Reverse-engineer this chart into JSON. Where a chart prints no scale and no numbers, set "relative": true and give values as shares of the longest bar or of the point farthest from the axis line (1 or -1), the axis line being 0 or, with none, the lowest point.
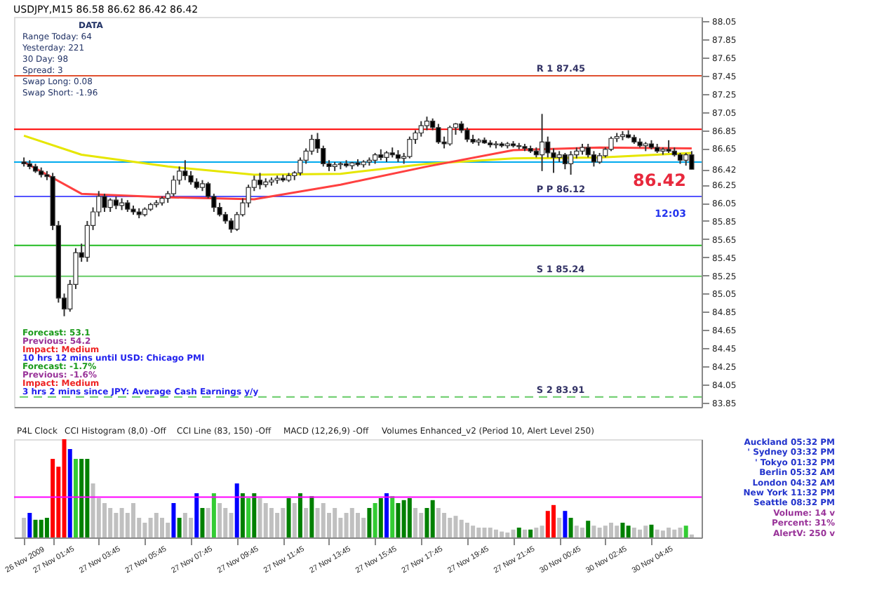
{
  "chart_data": [
    {
      "type": "candlestick",
      "title": "USDJPY,M15  86.58 86.62 86.42 86.42",
      "categories": [
        null,
        null,
        null,
        null,
        null,
        null,
        null,
        null,
        null,
        null,
        null,
        null,
        null,
        null,
        null,
        null,
        null,
        null,
        null,
        null,
        null,
        null,
        null,
        null,
        null,
        null,
        null,
        null,
        null,
        null,
        null,
        null,
        null,
        null,
        null,
        null,
        null,
        null,
        null,
        null,
        null,
        null,
        null,
        null,
        null,
        null,
        null,
        null,
        null,
        null,
        null,
        null,
        null,
        null,
        null,
        null,
        null,
        null,
        null,
        null,
        null,
        null,
        null,
        null,
        null,
        null,
        null,
        null,
        null,
        null,
        null,
        null,
        null,
        null,
        null,
        null,
        null,
        null,
        null,
        null,
        null,
        null,
        null,
        null,
        null,
        null,
        null,
        null,
        null,
        null,
        null,
        null,
        null,
        null,
        null,
        null,
        null,
        null,
        null,
        null,
        null,
        null,
        null,
        null,
        null,
        null,
        null,
        null,
        null,
        null,
        null,
        null,
        null,
        null,
        null,
        null,
        null
      ],
      "ohlc": [
        [
          86.5,
          86.55,
          86.45,
          86.48
        ],
        [
          86.48,
          86.52,
          86.42,
          86.45
        ],
        [
          86.45,
          86.48,
          86.38,
          86.4
        ],
        [
          86.4,
          86.44,
          86.33,
          86.36
        ],
        [
          86.36,
          86.4,
          86.3,
          86.34
        ],
        [
          86.34,
          86.38,
          85.75,
          85.8
        ],
        [
          85.8,
          85.85,
          84.95,
          85.0
        ],
        [
          85.0,
          85.05,
          84.8,
          84.88
        ],
        [
          84.88,
          85.2,
          84.85,
          85.15
        ],
        [
          85.15,
          85.55,
          85.1,
          85.5
        ],
        [
          85.5,
          85.6,
          85.4,
          85.45
        ],
        [
          85.45,
          85.85,
          85.4,
          85.8
        ],
        [
          85.8,
          86.0,
          85.75,
          85.95
        ],
        [
          85.95,
          86.18,
          85.9,
          86.12
        ],
        [
          86.12,
          86.15,
          85.95,
          86.0
        ],
        [
          86.0,
          86.1,
          85.95,
          86.08
        ],
        [
          86.08,
          86.12,
          85.98,
          86.02
        ],
        [
          86.02,
          86.1,
          85.97,
          86.05
        ],
        [
          86.05,
          86.08,
          85.95,
          85.98
        ],
        [
          85.98,
          86.02,
          85.92,
          85.95
        ],
        [
          85.95,
          85.99,
          85.88,
          85.92
        ],
        [
          85.92,
          86.0,
          85.9,
          85.98
        ],
        [
          85.98,
          86.05,
          85.96,
          86.03
        ],
        [
          86.03,
          86.08,
          86.0,
          86.05
        ],
        [
          86.05,
          86.12,
          86.02,
          86.1
        ],
        [
          86.1,
          86.18,
          86.05,
          86.15
        ],
        [
          86.15,
          86.35,
          86.12,
          86.3
        ],
        [
          86.3,
          86.45,
          86.25,
          86.4
        ],
        [
          86.4,
          86.52,
          86.3,
          86.35
        ],
        [
          86.35,
          86.4,
          86.25,
          86.28
        ],
        [
          86.28,
          86.32,
          86.2,
          86.22
        ],
        [
          86.22,
          86.3,
          86.18,
          86.26
        ],
        [
          86.26,
          86.28,
          86.1,
          86.12
        ],
        [
          86.12,
          86.15,
          85.95,
          86.0
        ],
        [
          86.0,
          86.05,
          85.9,
          85.92
        ],
        [
          85.92,
          85.95,
          85.82,
          85.85
        ],
        [
          85.85,
          85.88,
          85.72,
          85.76
        ],
        [
          85.76,
          85.95,
          85.74,
          85.92
        ],
        [
          85.92,
          86.1,
          85.9,
          86.05
        ],
        [
          86.05,
          86.25,
          86.0,
          86.22
        ],
        [
          86.22,
          86.35,
          86.18,
          86.3
        ],
        [
          86.3,
          86.38,
          86.2,
          86.25
        ],
        [
          86.25,
          86.32,
          86.22,
          86.28
        ],
        [
          86.28,
          86.33,
          86.24,
          86.3
        ],
        [
          86.3,
          86.35,
          86.26,
          86.32
        ],
        [
          86.32,
          86.36,
          86.28,
          86.3
        ],
        [
          86.3,
          86.38,
          86.28,
          86.35
        ],
        [
          86.35,
          86.4,
          86.3,
          86.38
        ],
        [
          86.38,
          86.55,
          86.35,
          86.52
        ],
        [
          86.52,
          86.65,
          86.48,
          86.62
        ],
        [
          86.62,
          86.8,
          86.58,
          86.75
        ],
        [
          86.75,
          86.82,
          86.6,
          86.65
        ],
        [
          86.65,
          86.68,
          86.45,
          86.48
        ],
        [
          86.48,
          86.52,
          86.4,
          86.45
        ],
        [
          86.45,
          86.5,
          86.4,
          86.47
        ],
        [
          86.47,
          86.5,
          86.42,
          86.48
        ],
        [
          86.48,
          86.52,
          86.44,
          86.46
        ],
        [
          86.46,
          86.5,
          86.42,
          86.49
        ],
        [
          86.49,
          86.53,
          86.45,
          86.47
        ],
        [
          86.47,
          86.52,
          86.44,
          86.5
        ],
        [
          86.5,
          86.55,
          86.46,
          86.52
        ],
        [
          86.52,
          86.6,
          86.48,
          86.58
        ],
        [
          86.58,
          86.64,
          86.52,
          86.55
        ],
        [
          86.55,
          86.62,
          86.5,
          86.6
        ],
        [
          86.6,
          86.66,
          86.55,
          86.58
        ],
        [
          86.58,
          86.63,
          86.5,
          86.54
        ],
        [
          86.54,
          86.6,
          86.48,
          86.56
        ],
        [
          86.56,
          86.78,
          86.54,
          86.75
        ],
        [
          86.75,
          86.85,
          86.7,
          86.82
        ],
        [
          86.82,
          86.95,
          86.78,
          86.9
        ],
        [
          86.9,
          87.0,
          86.85,
          86.95
        ],
        [
          86.95,
          86.98,
          86.85,
          86.88
        ],
        [
          86.88,
          86.92,
          86.7,
          86.72
        ],
        [
          86.72,
          86.78,
          86.65,
          86.7
        ],
        [
          86.7,
          86.9,
          86.68,
          86.88
        ],
        [
          86.88,
          86.93,
          86.8,
          86.92
        ],
        [
          86.92,
          86.95,
          86.82,
          86.85
        ],
        [
          86.85,
          86.88,
          86.72,
          86.75
        ],
        [
          86.75,
          86.8,
          86.7,
          86.72
        ],
        [
          86.72,
          86.76,
          86.68,
          86.74
        ],
        [
          86.74,
          86.77,
          86.7,
          86.71
        ],
        [
          86.71,
          86.74,
          86.66,
          86.69
        ],
        [
          86.69,
          86.73,
          86.65,
          86.7
        ],
        [
          86.7,
          86.72,
          86.66,
          86.68
        ],
        [
          86.68,
          86.72,
          86.65,
          86.7
        ],
        [
          86.7,
          86.73,
          86.66,
          86.68
        ],
        [
          86.68,
          86.71,
          86.64,
          86.67
        ],
        [
          86.67,
          86.7,
          86.62,
          86.65
        ],
        [
          86.65,
          86.68,
          86.6,
          86.62
        ],
        [
          86.62,
          86.66,
          86.55,
          86.58
        ],
        [
          86.58,
          87.03,
          86.4,
          86.72
        ],
        [
          86.72,
          86.78,
          86.55,
          86.6
        ],
        [
          86.6,
          86.65,
          86.38,
          86.55
        ],
        [
          86.55,
          86.62,
          86.5,
          86.58
        ],
        [
          86.58,
          86.6,
          86.42,
          86.48
        ],
        [
          86.48,
          86.62,
          86.36,
          86.58
        ],
        [
          86.58,
          86.66,
          86.54,
          86.62
        ],
        [
          86.62,
          86.7,
          86.58,
          86.66
        ],
        [
          86.66,
          86.7,
          86.55,
          86.58
        ],
        [
          86.58,
          86.62,
          86.45,
          86.5
        ],
        [
          86.5,
          86.6,
          86.48,
          86.57
        ],
        [
          86.57,
          86.66,
          86.55,
          86.64
        ],
        [
          86.64,
          86.78,
          86.62,
          86.76
        ],
        [
          86.76,
          86.82,
          86.72,
          86.78
        ],
        [
          86.78,
          86.84,
          86.74,
          86.8
        ],
        [
          86.8,
          86.85,
          86.76,
          86.77
        ],
        [
          86.77,
          86.8,
          86.7,
          86.72
        ],
        [
          86.72,
          86.76,
          86.66,
          86.68
        ],
        [
          86.68,
          86.72,
          86.62,
          86.7
        ],
        [
          86.7,
          86.74,
          86.64,
          86.66
        ],
        [
          86.66,
          86.7,
          86.6,
          86.62
        ],
        [
          86.62,
          86.66,
          86.58,
          86.64
        ],
        [
          86.64,
          86.74,
          86.6,
          86.62
        ],
        [
          86.62,
          86.66,
          86.56,
          86.58
        ],
        [
          86.58,
          86.6,
          86.48,
          86.52
        ],
        [
          86.52,
          86.6,
          86.46,
          86.58
        ],
        [
          86.58,
          86.62,
          86.42,
          86.42
        ]
      ],
      "series": [
        {
          "type": "line",
          "color": "#e6e600",
          "values": [
            86.79,
            null,
            null,
            null,
            null,
            null,
            null,
            null,
            null,
            null,
            86.58,
            null,
            null,
            null,
            null,
            null,
            null,
            null,
            null,
            null,
            null,
            null,
            null,
            null,
            null,
            86.45,
            null,
            null,
            null,
            null,
            null,
            null,
            null,
            null,
            null,
            null,
            null,
            null,
            null,
            null,
            86.36,
            null,
            null,
            null,
            null,
            null,
            null,
            null,
            null,
            null,
            null,
            null,
            null,
            null,
            null,
            86.37,
            null,
            null,
            null,
            null,
            null,
            null,
            null,
            null,
            null,
            null,
            null,
            null,
            null,
            null,
            86.48,
            null,
            null,
            null,
            null,
            null,
            null,
            null,
            null,
            null,
            null,
            null,
            null,
            null,
            null,
            86.54,
            null,
            null,
            null,
            null,
            null,
            null,
            null,
            null,
            null,
            null,
            null,
            null,
            null,
            null,
            86.55,
            null,
            null,
            null,
            null,
            null,
            null,
            null,
            null,
            null,
            null,
            null,
            null,
            null,
            null,
            null,
            86.6
          ]
        },
        {
          "type": "line",
          "color": "#ff4040",
          "values": [
            86.5,
            null,
            null,
            null,
            null,
            null,
            null,
            null,
            null,
            null,
            86.15,
            null,
            null,
            null,
            null,
            null,
            null,
            null,
            null,
            null,
            null,
            null,
            null,
            null,
            null,
            86.11,
            null,
            null,
            null,
            null,
            null,
            null,
            null,
            null,
            null,
            null,
            null,
            null,
            null,
            null,
            86.09,
            null,
            null,
            null,
            null,
            null,
            null,
            null,
            null,
            null,
            null,
            null,
            null,
            null,
            null,
            86.25,
            null,
            null,
            null,
            null,
            null,
            null,
            null,
            null,
            null,
            null,
            null,
            null,
            null,
            null,
            86.45,
            null,
            null,
            null,
            null,
            null,
            null,
            null,
            null,
            null,
            null,
            null,
            null,
            null,
            null,
            86.63,
            null,
            null,
            null,
            null,
            null,
            null,
            null,
            null,
            null,
            null,
            null,
            null,
            null,
            null,
            86.66,
            null,
            null,
            null,
            null,
            null,
            null,
            null,
            null,
            null,
            null,
            null,
            null,
            null,
            null,
            null,
            86.65
          ]
        }
      ],
      "ref_lines": [
        {
          "axis": "y",
          "value": 87.45,
          "label": "R 1  87.45",
          "color": "#e05030"
        },
        {
          "axis": "y",
          "value": 86.86,
          "color": "#ff0000"
        },
        {
          "axis": "y",
          "value": 86.5,
          "color": "#00aaee"
        },
        {
          "axis": "y",
          "value": 86.12,
          "label": "P P  86.12",
          "color": "#5555ff"
        },
        {
          "axis": "y",
          "value": 85.58,
          "color": "#22bb22"
        },
        {
          "axis": "y",
          "value": 85.24,
          "label": "S 1  85.24",
          "color": "#66cc66"
        },
        {
          "axis": "y",
          "value": 83.91,
          "label": "S 2  83.91",
          "color": "#66cc66",
          "line_style": "dashed"
        }
      ],
      "annotations": [
        "DATA",
        "Range Today:  64",
        "Yesterday:  221",
        "30 Day:  98",
        "Spread:  3",
        "Swap Long:  0.08",
        "Swap Short:  -1.96",
        "Forecast: 53.1",
        "Previous: 54.2",
        "Impact: Medium",
        "10 hrs 12 mins until USD: Chicago PMI",
        "Forecast: -1.7%",
        "Previous: -1.6%",
        "Impact: Medium",
        "3 hrs 2 mins since JPY: Average Cash Earnings y/y",
        "12:03",
        "86.42"
      ],
      "ylim": [
        83.8,
        88.1
      ],
      "yticks": [
        88.05,
        87.85,
        87.65,
        87.45,
        87.25,
        87.05,
        86.85,
        86.65,
        86.42,
        86.25,
        86.05,
        85.85,
        85.65,
        85.45,
        85.25,
        85.05,
        84.85,
        84.65,
        84.45,
        84.25,
        84.05,
        83.85
      ],
      "tick_labels": "y"
    },
    {
      "type": "bar",
      "relative": true,
      "categories": [
        "26 Nov 2009",
        null,
        null,
        null,
        null,
        "27 Nov 01:45",
        null,
        null,
        null,
        null,
        null,
        null,
        null,
        "27 Nov 03:45",
        null,
        null,
        null,
        null,
        null,
        null,
        null,
        "27 Nov 05:45",
        null,
        null,
        null,
        null,
        null,
        null,
        null,
        "27 Nov 07:45",
        null,
        null,
        null,
        null,
        null,
        null,
        null,
        "27 Nov 09:45",
        null,
        null,
        null,
        null,
        null,
        null,
        null,
        "27 Nov 11:45",
        null,
        null,
        null,
        null,
        null,
        null,
        null,
        "27 Nov 13:45",
        null,
        null,
        null,
        null,
        null,
        null,
        null,
        "27 Nov 15:45",
        null,
        null,
        null,
        null,
        null,
        null,
        null,
        "27 Nov 17:45",
        null,
        null,
        null,
        null,
        null,
        null,
        null,
        "27 Nov 19:45",
        null,
        null,
        null,
        null,
        null,
        null,
        null,
        "27 Nov 21:45",
        null,
        null,
        null,
        null,
        null,
        null,
        null,
        "30 Nov 00:45",
        null,
        null,
        null,
        null,
        null,
        null,
        null,
        "30 Nov 02:45",
        null,
        null,
        null,
        null,
        null,
        null,
        null,
        "30 Nov 04:45",
        null,
        null,
        null,
        null,
        null,
        null,
        null
      ],
      "values": [
        0.2,
        0.25,
        0.18,
        0.18,
        0.2,
        0.8,
        0.72,
        1,
        0.9,
        0.8,
        0.8,
        0.8,
        0.55,
        0.4,
        0.35,
        0.3,
        0.25,
        0.3,
        0.25,
        0.35,
        0.2,
        0.15,
        0.2,
        0.25,
        0.2,
        0.15,
        0.35,
        0.2,
        0.25,
        0.2,
        0.45,
        0.3,
        0.3,
        0.45,
        0.35,
        0.3,
        0.25,
        0.55,
        0.45,
        0.4,
        0.45,
        0.4,
        0.35,
        0.3,
        0.25,
        0.3,
        0.4,
        0.35,
        0.45,
        0.3,
        0.42,
        0.3,
        0.35,
        0.25,
        0.3,
        0.2,
        0.25,
        0.3,
        0.25,
        0.2,
        0.3,
        0.35,
        0.4,
        0.45,
        0.42,
        0.35,
        0.38,
        0.4,
        0.3,
        0.25,
        0.3,
        0.38,
        0.3,
        0.25,
        0.2,
        0.22,
        0.18,
        0.15,
        0.12,
        0.1,
        0.1,
        0.1,
        0.08,
        0.06,
        0.05,
        0.08,
        0.1,
        0.08,
        0.08,
        0.1,
        0.12,
        0.27,
        0.33,
        0.2,
        0.27,
        0.2,
        0.12,
        0.1,
        0.17,
        0.12,
        0.1,
        0.12,
        0.15,
        0.12,
        0.15,
        0.12,
        0.1,
        0.08,
        0.12,
        0.13,
        0.08,
        0.07,
        0.1,
        0.08,
        0.1,
        0.12,
        0.03
      ],
      "colors": [
        "#c0c0c0",
        "#0000ff",
        "#008000",
        "#008000",
        "#008000",
        "#ff0000",
        "#ff0000",
        "#ff0000",
        "#0000ff",
        "#33cc33",
        "#008000",
        "#008000",
        "#c0c0c0",
        "#c0c0c0",
        "#c0c0c0",
        "#c0c0c0",
        "#c0c0c0",
        "#c0c0c0",
        "#c0c0c0",
        "#c0c0c0",
        "#c0c0c0",
        "#c0c0c0",
        "#c0c0c0",
        "#c0c0c0",
        "#c0c0c0",
        "#c0c0c0",
        "#0000ff",
        "#008000",
        "#c0c0c0",
        "#c0c0c0",
        "#0000ff",
        "#008000",
        "#c0c0c0",
        "#33cc33",
        "#c0c0c0",
        "#c0c0c0",
        "#c0c0c0",
        "#0000ff",
        "#008000",
        "#33cc33",
        "#008000",
        "#c0c0c0",
        "#c0c0c0",
        "#c0c0c0",
        "#c0c0c0",
        "#c0c0c0",
        "#008000",
        "#c0c0c0",
        "#008000",
        "#c0c0c0",
        "#008000",
        "#c0c0c0",
        "#c0c0c0",
        "#c0c0c0",
        "#c0c0c0",
        "#c0c0c0",
        "#c0c0c0",
        "#c0c0c0",
        "#c0c0c0",
        "#c0c0c0",
        "#008000",
        "#33cc33",
        "#008000",
        "#0000ff",
        "#33cc33",
        "#008000",
        "#008000",
        "#008000",
        "#c0c0c0",
        "#c0c0c0",
        "#008000",
        "#008000",
        "#c0c0c0",
        "#c0c0c0",
        "#c0c0c0",
        "#c0c0c0",
        "#c0c0c0",
        "#c0c0c0",
        "#c0c0c0",
        "#c0c0c0",
        "#c0c0c0",
        "#c0c0c0",
        "#c0c0c0",
        "#c0c0c0",
        "#c0c0c0",
        "#c0c0c0",
        "#008000",
        "#c0c0c0",
        "#008000",
        "#c0c0c0",
        "#c0c0c0",
        "#ff0000",
        "#ff0000",
        "#c0c0c0",
        "#0000ff",
        "#008000",
        "#c0c0c0",
        "#c0c0c0",
        "#008000",
        "#c0c0c0",
        "#c0c0c0",
        "#c0c0c0",
        "#c0c0c0",
        "#c0c0c0",
        "#008000",
        "#008000",
        "#c0c0c0",
        "#c0c0c0",
        "#c0c0c0",
        "#008000",
        "#c0c0c0",
        "#c0c0c0",
        "#c0c0c0",
        "#c0c0c0",
        "#c0c0c0",
        "#33cc33",
        "#c0c0c0"
      ],
      "ref_lines": [
        {
          "axis": "y",
          "value": 0.41,
          "color": "#ff00ff"
        }
      ],
      "annotations": [
        "P4L Clock",
        "CCI Histogram (8,0) -Off",
        "CCI Line (83, 150) -Off",
        "MACD (12,26,9) -Off",
        "Volumes Enhanced_v2 (Period 10, Alert Level 250)",
        "Auckland  05:32 PM",
        "' Sydney  03:32 PM",
        "' Tokyo  01:32 PM",
        "Berlin  05:32 AM",
        "London  04:32 AM",
        "New York  11:32 PM",
        "Seattle  08:32 PM",
        "Volume:  14 v",
        "Percent:  31%",
        "AlertV:  250 v"
      ],
      "tick_labels": "x"
    }
  ]
}
